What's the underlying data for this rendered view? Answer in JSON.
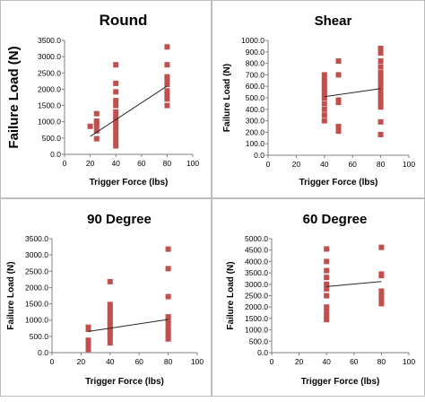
{
  "colors": {
    "marker": "#c0504d",
    "trend": "#262626",
    "axis": "#7f7f7f",
    "text": "#000000"
  },
  "chart_data": [
    {
      "type": "scatter",
      "title": "Round",
      "xlabel": "Trigger Force (lbs)",
      "ylabel": "Failure Load (N)",
      "xlim": [
        0,
        100
      ],
      "ylim": [
        0,
        3500
      ],
      "xticks": [
        0,
        20,
        40,
        60,
        80,
        100
      ],
      "yticks": [
        0,
        500,
        1000,
        1500,
        2000,
        2500,
        3000,
        3500
      ],
      "ytick_format": 1,
      "grid": false,
      "series": [
        {
          "points": [
            [
              20,
              860
            ],
            [
              25,
              1250
            ],
            [
              25,
              1020
            ],
            [
              25,
              950
            ],
            [
              25,
              880
            ],
            [
              25,
              720
            ],
            [
              25,
              480
            ],
            [
              40,
              2750
            ],
            [
              40,
              2180
            ],
            [
              40,
              1920
            ],
            [
              40,
              1650
            ],
            [
              40,
              1500
            ],
            [
              40,
              1300
            ],
            [
              40,
              1150
            ],
            [
              40,
              1050
            ],
            [
              40,
              960
            ],
            [
              40,
              850
            ],
            [
              40,
              720
            ],
            [
              40,
              560
            ],
            [
              40,
              400
            ],
            [
              40,
              260
            ],
            [
              80,
              3300
            ],
            [
              80,
              2750
            ],
            [
              80,
              2380
            ],
            [
              80,
              2300
            ],
            [
              80,
              2150
            ],
            [
              80,
              1950
            ],
            [
              80,
              1820
            ],
            [
              80,
              1700
            ],
            [
              80,
              1500
            ]
          ]
        }
      ],
      "trendline": [
        [
          20,
          550
        ],
        [
          80,
          2100
        ]
      ]
    },
    {
      "type": "scatter",
      "title": "Shear",
      "xlabel": "Trigger Force (lbs)",
      "ylabel": "Failure Load (N)",
      "xlim": [
        0,
        100
      ],
      "ylim": [
        0,
        1000
      ],
      "xticks": [
        0,
        20,
        40,
        60,
        80,
        100
      ],
      "yticks": [
        0,
        100,
        200,
        300,
        400,
        500,
        600,
        700,
        800,
        900,
        1000
      ],
      "ytick_format": 1,
      "grid": false,
      "series": [
        {
          "points": [
            [
              40,
              700
            ],
            [
              40,
              660
            ],
            [
              40,
              620
            ],
            [
              40,
              590
            ],
            [
              40,
              560
            ],
            [
              40,
              530
            ],
            [
              40,
              500
            ],
            [
              40,
              450
            ],
            [
              40,
              400
            ],
            [
              40,
              350
            ],
            [
              40,
              300
            ],
            [
              50,
              820
            ],
            [
              50,
              700
            ],
            [
              50,
              480
            ],
            [
              50,
              460
            ],
            [
              50,
              250
            ],
            [
              50,
              210
            ],
            [
              80,
              930
            ],
            [
              80,
              890
            ],
            [
              80,
              820
            ],
            [
              80,
              770
            ],
            [
              80,
              720
            ],
            [
              80,
              680
            ],
            [
              80,
              640
            ],
            [
              80,
              600
            ],
            [
              80,
              560
            ],
            [
              80,
              520
            ],
            [
              80,
              480
            ],
            [
              80,
              450
            ],
            [
              80,
              420
            ],
            [
              80,
              290
            ],
            [
              80,
              180
            ]
          ]
        }
      ],
      "trendline": [
        [
          40,
          510
        ],
        [
          80,
          580
        ]
      ]
    },
    {
      "type": "scatter",
      "title": "90 Degree",
      "xlabel": "Trigger Force (lbs)",
      "ylabel": "Failure Load (N)",
      "xlim": [
        0,
        100
      ],
      "ylim": [
        0,
        3500
      ],
      "xticks": [
        0,
        20,
        40,
        60,
        80,
        100
      ],
      "yticks": [
        0,
        500,
        1000,
        1500,
        2000,
        2500,
        3000,
        3500
      ],
      "ytick_format": 1,
      "grid": false,
      "series": [
        {
          "points": [
            [
              25,
              780
            ],
            [
              25,
              720
            ],
            [
              25,
              380
            ],
            [
              25,
              260
            ],
            [
              25,
              100
            ],
            [
              40,
              2180
            ],
            [
              40,
              1480
            ],
            [
              40,
              1380
            ],
            [
              40,
              1250
            ],
            [
              40,
              1150
            ],
            [
              40,
              1050
            ],
            [
              40,
              950
            ],
            [
              40,
              850
            ],
            [
              40,
              750
            ],
            [
              40,
              650
            ],
            [
              40,
              550
            ],
            [
              40,
              450
            ],
            [
              40,
              300
            ],
            [
              80,
              3180
            ],
            [
              80,
              2580
            ],
            [
              80,
              1720
            ],
            [
              80,
              1100
            ],
            [
              80,
              1000
            ],
            [
              80,
              900
            ],
            [
              80,
              800
            ],
            [
              80,
              700
            ],
            [
              80,
              600
            ],
            [
              80,
              500
            ],
            [
              80,
              420
            ]
          ]
        }
      ],
      "trendline": [
        [
          25,
          650
        ],
        [
          80,
          1020
        ]
      ]
    },
    {
      "type": "scatter",
      "title": "60 Degree",
      "xlabel": "Trigger Force (lbs)",
      "ylabel": "Failure Load (N)",
      "xlim": [
        0,
        100
      ],
      "ylim": [
        0,
        5000
      ],
      "xticks": [
        0,
        20,
        40,
        60,
        80,
        100
      ],
      "yticks": [
        0,
        500,
        1000,
        1500,
        2000,
        2500,
        3000,
        3500,
        4000,
        4500,
        5000
      ],
      "ytick_format": 1,
      "grid": false,
      "series": [
        {
          "points": [
            [
              40,
              4550
            ],
            [
              40,
              4000
            ],
            [
              40,
              3600
            ],
            [
              40,
              3300
            ],
            [
              40,
              3000
            ],
            [
              40,
              2800
            ],
            [
              40,
              2500
            ],
            [
              40,
              2000
            ],
            [
              40,
              1800
            ],
            [
              40,
              1600
            ],
            [
              40,
              1450
            ],
            [
              80,
              4620
            ],
            [
              80,
              3450
            ],
            [
              80,
              3380
            ],
            [
              80,
              2700
            ],
            [
              80,
              2500
            ],
            [
              80,
              2300
            ],
            [
              80,
              2150
            ]
          ]
        }
      ],
      "trendline": [
        [
          40,
          2900
        ],
        [
          80,
          3120
        ]
      ]
    }
  ]
}
